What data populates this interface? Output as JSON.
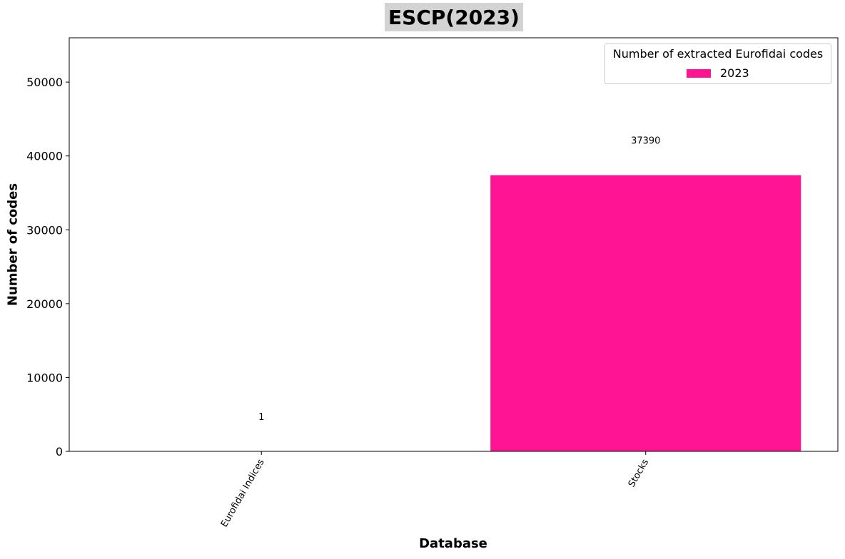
{
  "chart_data": {
    "type": "bar",
    "title": "ESCP(2023)",
    "xlabel": "Database",
    "ylabel": "Number of codes",
    "categories": [
      "Eurofidai Indices",
      "Stocks"
    ],
    "series": [
      {
        "name": "2023",
        "values": [
          1,
          37390
        ],
        "color": "#ff1493"
      }
    ],
    "data_labels": [
      "1",
      "37390"
    ],
    "ylim": [
      0,
      56000
    ],
    "yticks": [
      0,
      10000,
      20000,
      30000,
      40000,
      50000
    ],
    "legend": {
      "title": "Number of extracted Eurofidai codes",
      "placement": "top-right"
    },
    "grid": false
  }
}
